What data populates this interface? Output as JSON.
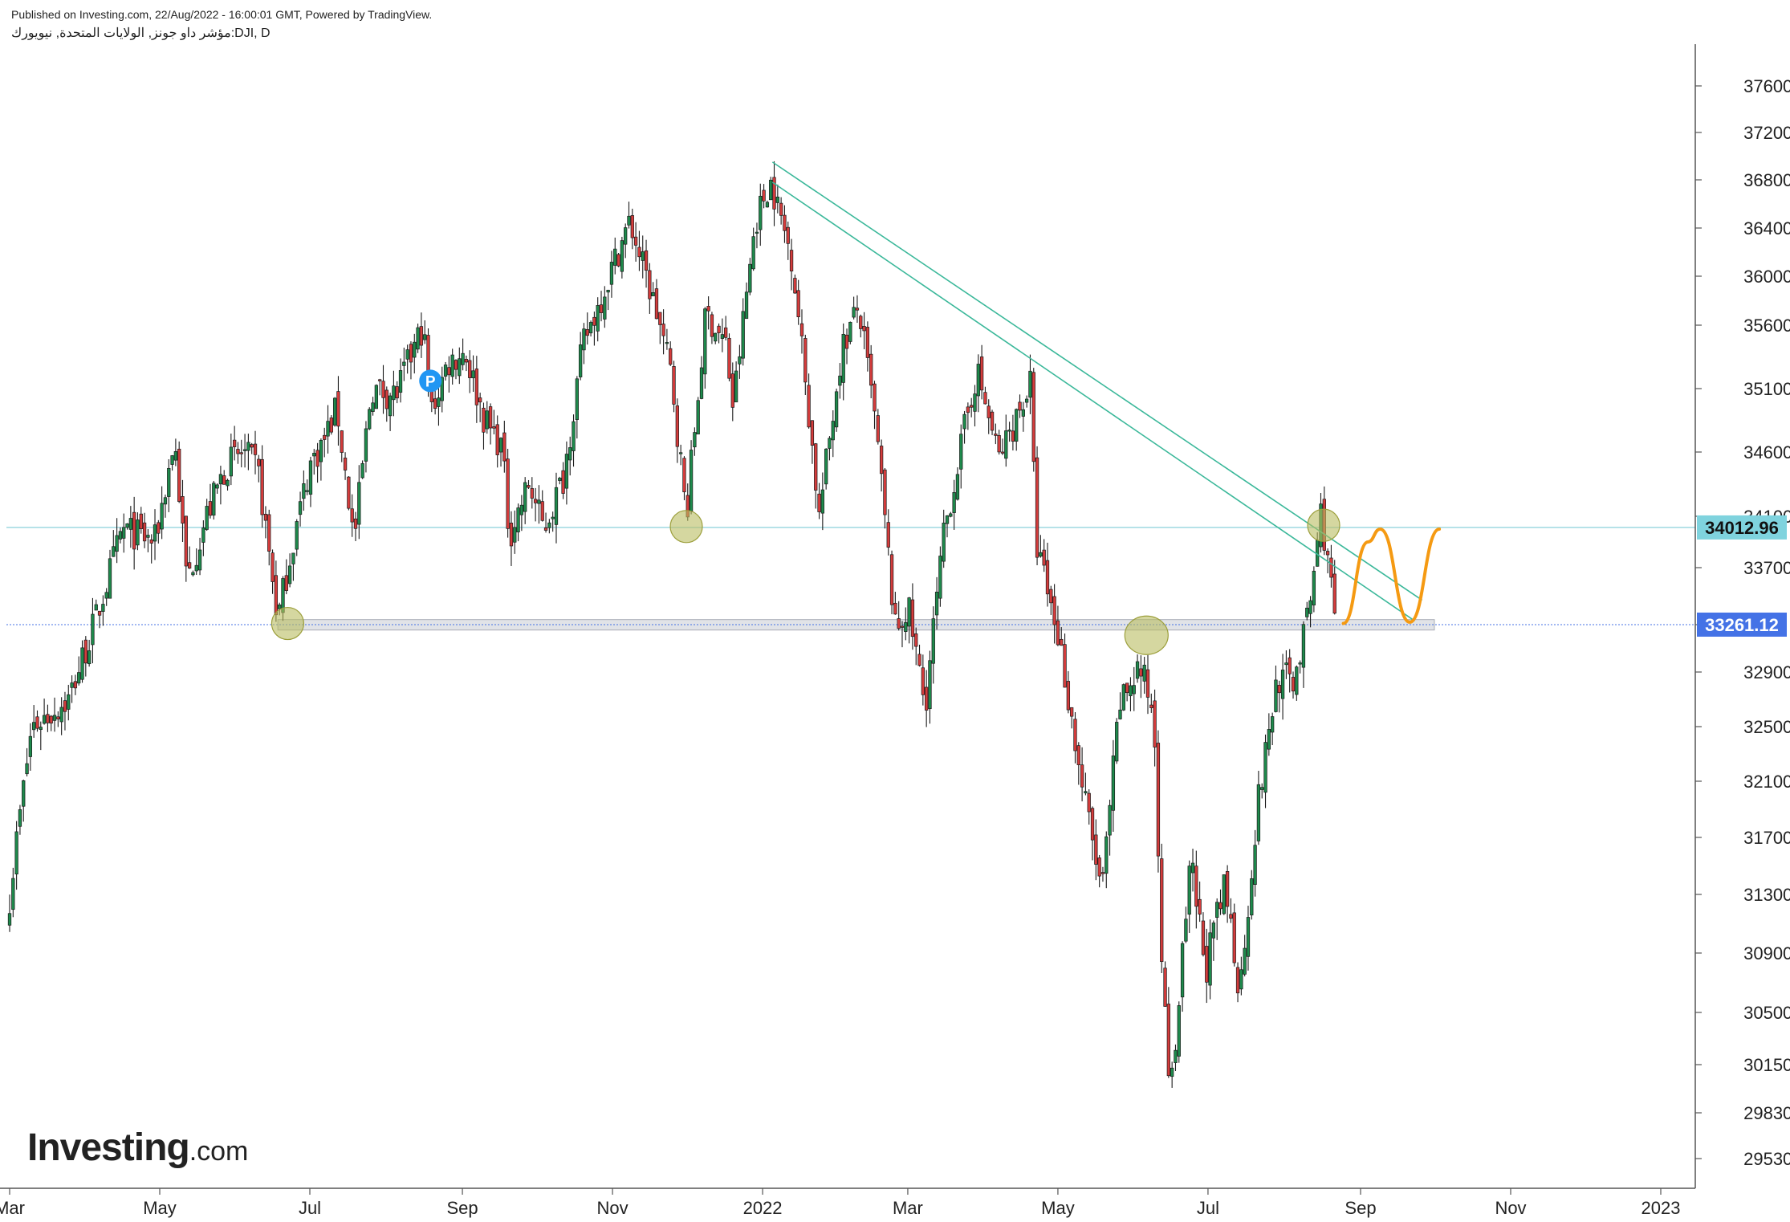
{
  "header": {
    "published": "Published on Investing.com, 22/Aug/2022 - 16:00:01 GMT, Powered by TradingView.",
    "symbol_line": "مؤشر داو جونز, الولايات المتحدة, نيويورك:DJI, D"
  },
  "logo": {
    "main": "Investing",
    "suffix": ".com"
  },
  "colors": {
    "up": "#1e8a4c",
    "down": "#d43c3c",
    "trendline": "#3bb89a",
    "support_band": "#c9ccd4",
    "projection": "#f59a12",
    "highlight_circle": "#b9bd60",
    "resistance_line": "#7ecbd6",
    "price_tag_cyan": "#7fd3de",
    "price_tag_blue": "#4472e6",
    "pivot_marker": "#2196f3"
  },
  "pivot_marker": {
    "label": "P",
    "icon": "pivot-marker-icon"
  },
  "chart_data": {
    "type": "candlestick",
    "title": "",
    "xlabel": "",
    "ylabel": "",
    "x_tick_labels": [
      "Mar",
      "May",
      "Jul",
      "Sep",
      "Nov",
      "2022",
      "Mar",
      "May",
      "Jul",
      "Sep",
      "Nov",
      "2023"
    ],
    "y_tick_labels": [
      "37600.00",
      "37200.00",
      "36800.00",
      "36400.00",
      "36000.00",
      "35600.00",
      "35100.00",
      "34600.00",
      "34100.00",
      "33700.00",
      "33261.12",
      "32900.00",
      "32500.00",
      "32100.00",
      "31700.00",
      "31300.00",
      "30900.00",
      "30500.00",
      "30150.00",
      "29830.00",
      "29530.00"
    ],
    "ylim": [
      29300,
      37850
    ],
    "price_tags": [
      {
        "value": "34012.96",
        "style": "cyan"
      },
      {
        "value": "33261.12",
        "style": "blue"
      }
    ],
    "key_path": [
      [
        "2021-03-01",
        31300
      ],
      [
        "2021-03-10",
        32500
      ],
      [
        "2021-03-25",
        32700
      ],
      [
        "2021-04-05",
        33300
      ],
      [
        "2021-04-16",
        34000
      ],
      [
        "2021-04-29",
        33900
      ],
      [
        "2021-05-07",
        34700
      ],
      [
        "2021-05-12",
        33600
      ],
      [
        "2021-05-20",
        34100
      ],
      [
        "2021-05-28",
        34500
      ],
      [
        "2021-06-04",
        34600
      ],
      [
        "2021-06-10",
        34450
      ],
      [
        "2021-06-18",
        33300
      ],
      [
        "2021-06-23",
        33800
      ],
      [
        "2021-07-01",
        34500
      ],
      [
        "2021-07-07",
        34700
      ],
      [
        "2021-07-12",
        34950
      ],
      [
        "2021-07-19",
        33900
      ],
      [
        "2021-07-26",
        35100
      ],
      [
        "2021-08-05",
        35050
      ],
      [
        "2021-08-16",
        35600
      ],
      [
        "2021-08-19",
        34900
      ],
      [
        "2021-08-26",
        35300
      ],
      [
        "2021-09-02",
        35400
      ],
      [
        "2021-09-10",
        34850
      ],
      [
        "2021-09-17",
        34650
      ],
      [
        "2021-09-20",
        33950
      ],
      [
        "2021-09-28",
        34350
      ],
      [
        "2021-10-04",
        34000
      ],
      [
        "2021-10-12",
        34400
      ],
      [
        "2021-10-20",
        35450
      ],
      [
        "2021-10-26",
        35750
      ],
      [
        "2021-11-05",
        36300
      ],
      [
        "2021-11-08",
        36450
      ],
      [
        "2021-11-19",
        35700
      ],
      [
        "2021-11-25",
        35200
      ],
      [
        "2021-12-01",
        34100
      ],
      [
        "2021-12-09",
        35700
      ],
      [
        "2021-12-17",
        35450
      ],
      [
        "2021-12-20",
        34950
      ],
      [
        "2021-12-29",
        36450
      ],
      [
        "2022-01-04",
        36800
      ],
      [
        "2022-01-13",
        36150
      ],
      [
        "2022-01-19",
        35050
      ],
      [
        "2022-01-24",
        34100
      ],
      [
        "2022-02-02",
        35400
      ],
      [
        "2022-02-09",
        35750
      ],
      [
        "2022-02-16",
        34800
      ],
      [
        "2022-02-24",
        33200
      ],
      [
        "2022-03-01",
        33400
      ],
      [
        "2022-03-08",
        32650
      ],
      [
        "2022-03-16",
        34000
      ],
      [
        "2022-03-29",
        35250
      ],
      [
        "2022-04-07",
        34550
      ],
      [
        "2022-04-20",
        35150
      ],
      [
        "2022-04-22",
        33900
      ],
      [
        "2022-05-02",
        33100
      ],
      [
        "2022-05-10",
        32150
      ],
      [
        "2022-05-19",
        31300
      ],
      [
        "2022-05-26",
        32650
      ],
      [
        "2022-06-03",
        32950
      ],
      [
        "2022-06-09",
        32600
      ],
      [
        "2022-06-13",
        30550
      ],
      [
        "2022-06-16",
        29950
      ],
      [
        "2022-06-24",
        31500
      ],
      [
        "2022-06-30",
        30800
      ],
      [
        "2022-07-08",
        31350
      ],
      [
        "2022-07-14",
        30650
      ],
      [
        "2022-07-21",
        31900
      ],
      [
        "2022-07-29",
        32850
      ],
      [
        "2022-08-05",
        32850
      ],
      [
        "2022-08-11",
        33350
      ],
      [
        "2022-08-16",
        34150
      ],
      [
        "2022-08-19",
        33700
      ],
      [
        "2022-08-22",
        33261
      ]
    ],
    "annotations": {
      "support_zone": {
        "from": "2021-06-18",
        "to": "2022-10-01",
        "low": 33220,
        "high": 33300
      },
      "resistance_line": {
        "value": 34012.96
      },
      "price_marker_line": {
        "value": 33261.12
      },
      "trendline_upper": {
        "start": [
          "2022-01-05",
          36950
        ],
        "end": [
          "2022-09-26",
          33450
        ]
      },
      "trendline_lower": {
        "start": [
          "2022-01-05",
          36780
        ],
        "end": [
          "2022-09-23",
          33290
        ]
      },
      "highlight_circles": [
        {
          "date": "2021-06-22",
          "value": 33270
        },
        {
          "date": "2021-12-01",
          "value": 34020
        },
        {
          "date": "2022-06-06",
          "value": 33180
        },
        {
          "date": "2022-08-17",
          "value": 34030
        }
      ],
      "projection_path": [
        [
          "2022-08-25",
          33270
        ],
        [
          "2022-09-04",
          33900
        ],
        [
          "2022-09-09",
          34000
        ],
        [
          "2022-09-21",
          33280
        ],
        [
          "2022-10-03",
          34000
        ]
      ],
      "pivot_marker_date": "2021-08-19",
      "pivot_marker_value": 35300
    }
  }
}
